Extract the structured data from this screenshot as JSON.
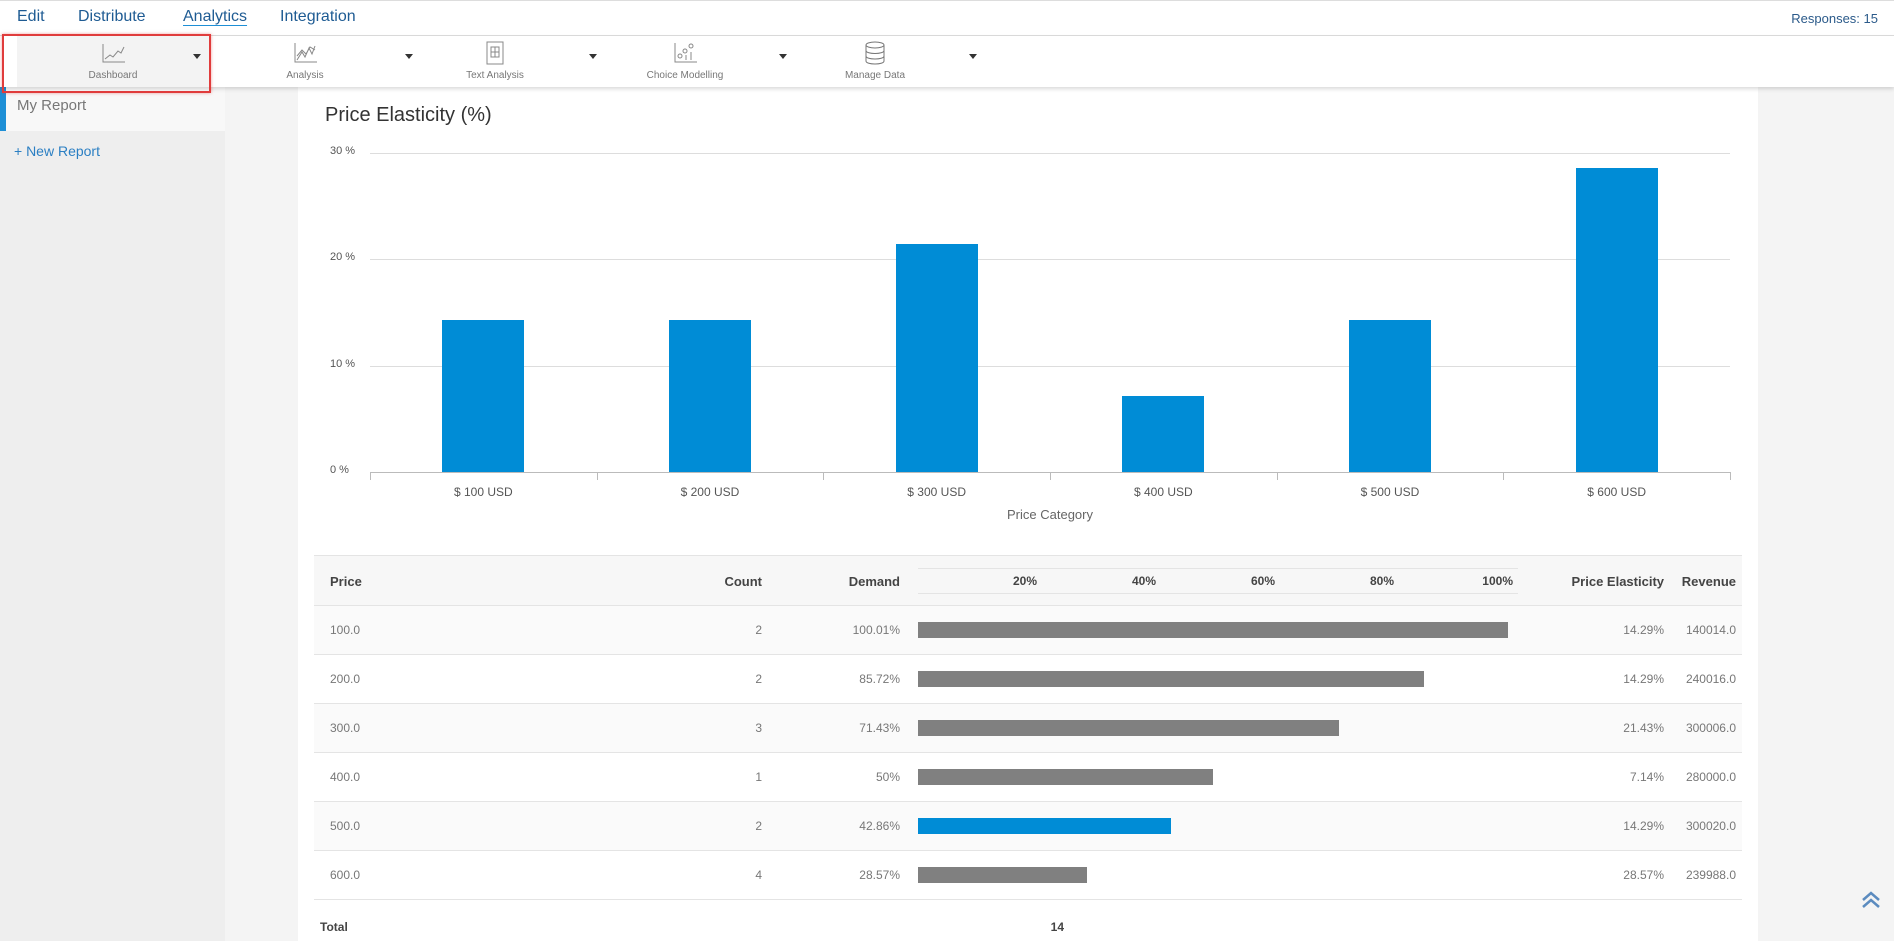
{
  "topnav": {
    "items": [
      {
        "label": "Edit"
      },
      {
        "label": "Distribute"
      },
      {
        "label": "Analytics",
        "active": true
      },
      {
        "label": "Integration"
      }
    ],
    "responses": "Responses: 15"
  },
  "toolbar": {
    "items": [
      {
        "label": "Dashboard",
        "icon": "line-chart-icon",
        "selected": true
      },
      {
        "label": "Analysis",
        "icon": "multi-line-chart-icon"
      },
      {
        "label": "Text Analysis",
        "icon": "document-grid-icon"
      },
      {
        "label": "Choice Modelling",
        "icon": "scatter-chart-icon"
      },
      {
        "label": "Manage Data",
        "icon": "database-icon"
      }
    ]
  },
  "sidebar": {
    "items": [
      {
        "label": "My Report"
      }
    ],
    "new_report": "+ New Report"
  },
  "colors": {
    "accent": "#008cd6",
    "bar_gray": "#808080",
    "highlight_border": "#e03c3c"
  },
  "chart_data": {
    "type": "bar",
    "title": "Price Elasticity (%)",
    "xlabel": "Price Category",
    "ylabel": "",
    "categories": [
      "$ 100 USD",
      "$ 200 USD",
      "$ 300 USD",
      "$ 400 USD",
      "$ 500 USD",
      "$ 600 USD"
    ],
    "values": [
      14.29,
      14.29,
      21.43,
      7.14,
      14.29,
      28.57
    ],
    "ylim": [
      0,
      30
    ],
    "yticks": [
      "0 %",
      "10 %",
      "20 %",
      "30 %"
    ],
    "grid": true
  },
  "table": {
    "headers": {
      "price": "Price",
      "count": "Count",
      "demand": "Demand",
      "price_elasticity": "Price Elasticity",
      "revenue": "Revenue"
    },
    "demand_axis": [
      "20%",
      "40%",
      "60%",
      "80%",
      "100%"
    ],
    "rows": [
      {
        "price": "100.0",
        "count": "2",
        "demand": "100.01%",
        "demand_value": 100.01,
        "price_elasticity": "14.29%",
        "revenue": "140014.0",
        "highlighted": false
      },
      {
        "price": "200.0",
        "count": "2",
        "demand": "85.72%",
        "demand_value": 85.72,
        "price_elasticity": "14.29%",
        "revenue": "240016.0",
        "highlighted": false
      },
      {
        "price": "300.0",
        "count": "3",
        "demand": "71.43%",
        "demand_value": 71.43,
        "price_elasticity": "21.43%",
        "revenue": "300006.0",
        "highlighted": false
      },
      {
        "price": "400.0",
        "count": "1",
        "demand": "50%",
        "demand_value": 50,
        "price_elasticity": "7.14%",
        "revenue": "280000.0",
        "highlighted": false
      },
      {
        "price": "500.0",
        "count": "2",
        "demand": "42.86%",
        "demand_value": 42.86,
        "price_elasticity": "14.29%",
        "revenue": "300020.0",
        "highlighted": true
      },
      {
        "price": "600.0",
        "count": "4",
        "demand": "28.57%",
        "demand_value": 28.57,
        "price_elasticity": "28.57%",
        "revenue": "239988.0",
        "highlighted": false
      }
    ],
    "total": {
      "label": "Total",
      "count": "14"
    }
  }
}
